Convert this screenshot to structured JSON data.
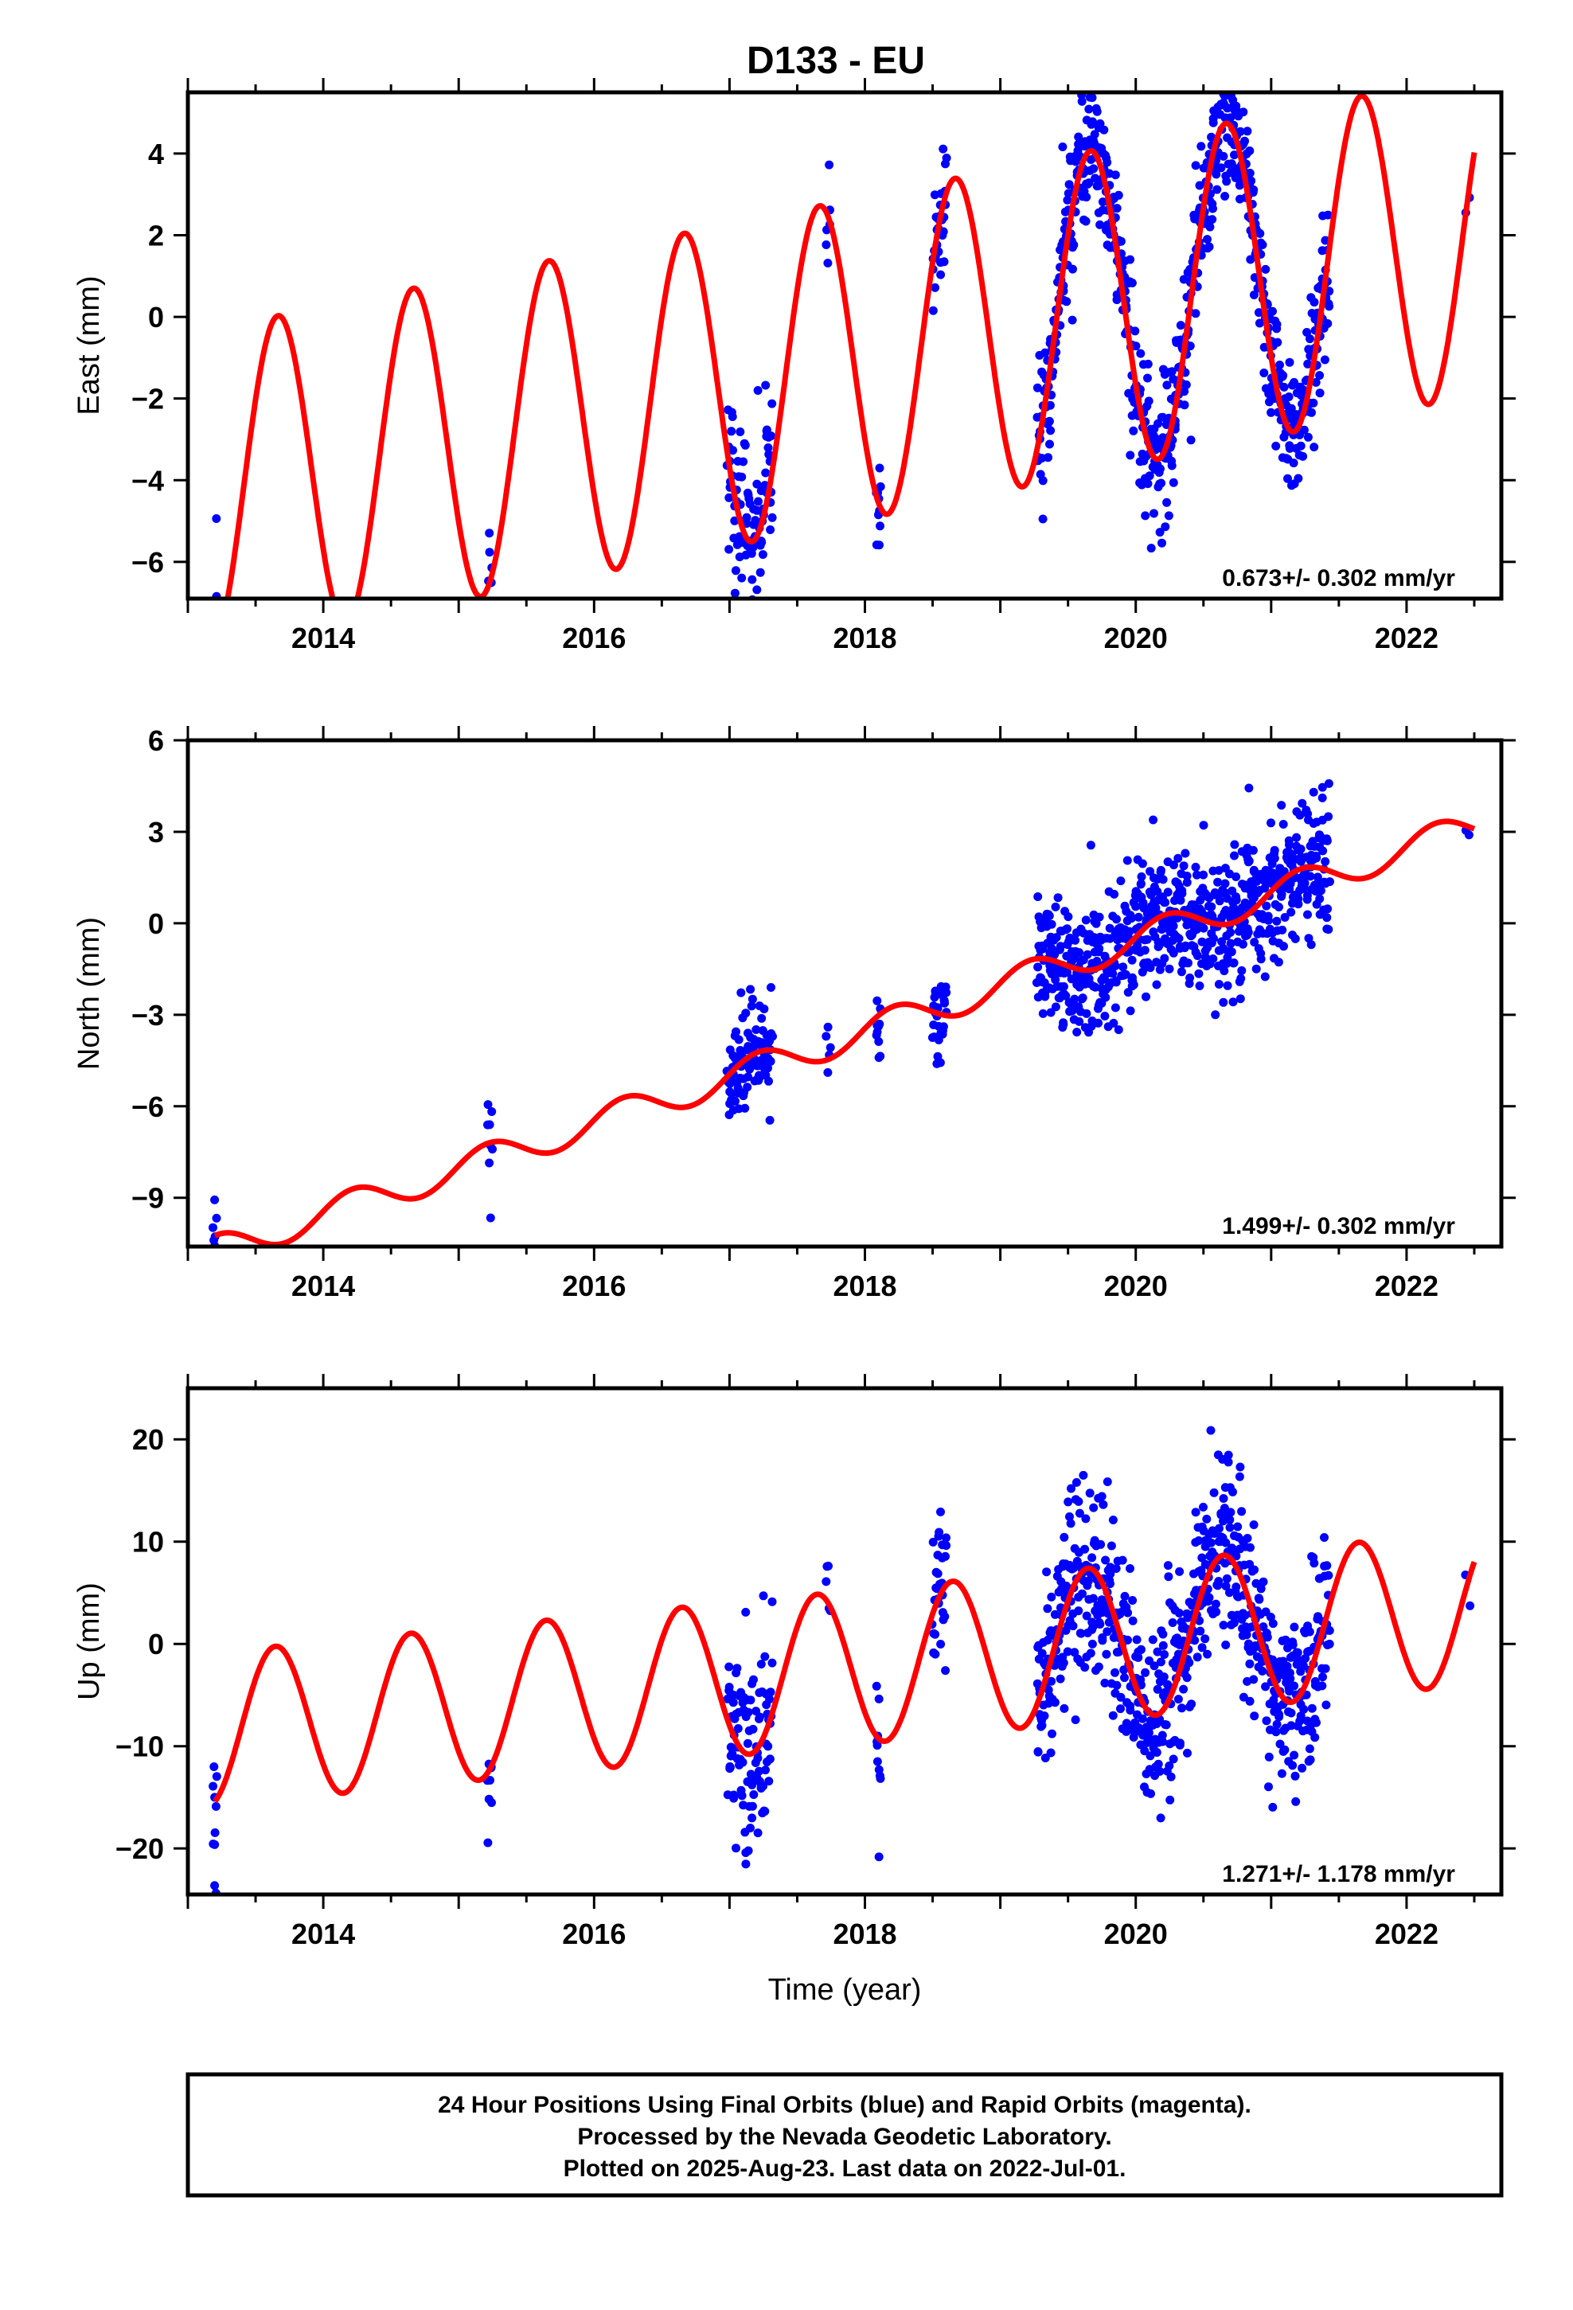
{
  "figure": {
    "title": "D133 - EU",
    "footer_lines": [
      "24 Hour Positions Using Final Orbits (blue) and Rapid Orbits (magenta).",
      "Processed by the Nevada Geodetic Laboratory.",
      "Plotted on 2025-Aug-23. Last data on 2022-Jul-01."
    ],
    "colors": {
      "observations": "#0000ff",
      "model": "#ff0000",
      "frame": "#000000"
    }
  },
  "chart_data": [
    {
      "type": "scatter",
      "component": "east",
      "ylabel": "East (mm)",
      "xlabel": "",
      "xlim": [
        2013.0,
        2022.7
      ],
      "ylim": [
        -6.9,
        5.5
      ],
      "xticks": [
        2014,
        2016,
        2018,
        2020,
        2022
      ],
      "yticks": [
        -6,
        -4,
        -2,
        0,
        2,
        4
      ],
      "rate_label": "0.673+/- 0.302 mm/yr",
      "model": {
        "slope": 0.673,
        "intercept": -1.0,
        "reference_year": 2018.0,
        "amp_cos": -2.0,
        "amp_sin": -3.4
      },
      "segments": [
        {
          "t": 2013.2,
          "n": 10,
          "spread": 1.1,
          "dt": 0.03
        },
        {
          "t": 2015.23,
          "n": 9,
          "spread": 0.8,
          "dt": 0.03
        },
        {
          "t": 2017.15,
          "n": 95,
          "spread": 1.2,
          "dt": 0.33
        },
        {
          "t": 2017.73,
          "n": 6,
          "spread": 0.7,
          "dt": 0.03
        },
        {
          "t": 2018.1,
          "n": 10,
          "spread": 1.0,
          "dt": 0.03
        },
        {
          "t": 2018.55,
          "n": 30,
          "spread": 0.8,
          "dt": 0.1
        },
        {
          "t": 2020.35,
          "n": 700,
          "spread": 0.9,
          "dt": 2.16
        },
        {
          "t": 2022.45,
          "n": 2,
          "spread": 0.3,
          "dt": 0.03
        }
      ]
    },
    {
      "type": "scatter",
      "component": "north",
      "ylabel": "North (mm)",
      "xlabel": "",
      "xlim": [
        2013.0,
        2022.7
      ],
      "ylim": [
        -10.6,
        6.0
      ],
      "xticks": [
        2014,
        2016,
        2018,
        2020,
        2022
      ],
      "yticks": [
        -9,
        -6,
        -3,
        0,
        3,
        6
      ],
      "rate_label": "1.499+/- 0.302 mm/yr",
      "model": {
        "slope": 1.499,
        "intercept": -3.55,
        "reference_year": 2018.0,
        "amp_cos": 0.1,
        "amp_sin": 0.5
      },
      "segments": [
        {
          "t": 2013.2,
          "n": 8,
          "spread": 0.7,
          "dt": 0.03
        },
        {
          "t": 2015.23,
          "n": 8,
          "spread": 0.7,
          "dt": 0.03
        },
        {
          "t": 2017.15,
          "n": 100,
          "spread": 0.9,
          "dt": 0.33
        },
        {
          "t": 2017.73,
          "n": 5,
          "spread": 0.6,
          "dt": 0.03
        },
        {
          "t": 2018.1,
          "n": 10,
          "spread": 0.8,
          "dt": 0.03
        },
        {
          "t": 2018.55,
          "n": 30,
          "spread": 0.8,
          "dt": 0.1
        },
        {
          "t": 2020.35,
          "n": 700,
          "spread": 1.1,
          "dt": 2.16
        },
        {
          "t": 2022.45,
          "n": 2,
          "spread": 0.3,
          "dt": 0.03
        }
      ]
    },
    {
      "type": "scatter",
      "component": "up",
      "ylabel": "Up (mm)",
      "xlabel": "Time (year)",
      "xlim": [
        2013.0,
        2022.7
      ],
      "ylim": [
        -24.5,
        25.0
      ],
      "xticks": [
        2014,
        2016,
        2018,
        2020,
        2022
      ],
      "yticks": [
        -20,
        -10,
        0,
        10,
        20
      ],
      "rate_label": "1.271+/- 1.178 mm/yr",
      "model": {
        "slope": 1.271,
        "intercept": -2.2,
        "reference_year": 2018.0,
        "amp_cos": -4.5,
        "amp_sin": -6.0
      },
      "segments": [
        {
          "t": 2013.2,
          "n": 10,
          "spread": 3.5,
          "dt": 0.03
        },
        {
          "t": 2015.23,
          "n": 8,
          "spread": 4.0,
          "dt": 0.03
        },
        {
          "t": 2017.15,
          "n": 100,
          "spread": 5.0,
          "dt": 0.33
        },
        {
          "t": 2017.73,
          "n": 5,
          "spread": 2.5,
          "dt": 0.03
        },
        {
          "t": 2018.1,
          "n": 10,
          "spread": 5.0,
          "dt": 0.03
        },
        {
          "t": 2018.55,
          "n": 30,
          "spread": 4.0,
          "dt": 0.1
        },
        {
          "t": 2020.35,
          "n": 700,
          "spread": 4.5,
          "dt": 2.16
        },
        {
          "t": 2022.45,
          "n": 2,
          "spread": 2.0,
          "dt": 0.03
        }
      ]
    }
  ]
}
